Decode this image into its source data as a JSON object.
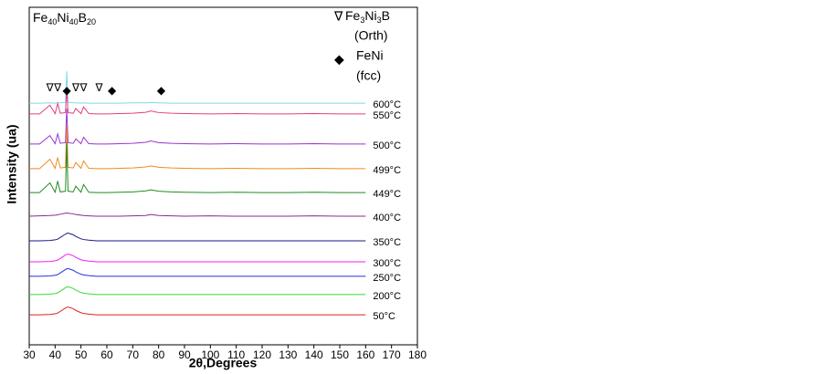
{
  "chart_data": {
    "type": "line",
    "title": "Fe40Ni40B20",
    "xlabel": "2θ,Degrees",
    "ylabel": "Intensity (ua)",
    "xlim": [
      30,
      180
    ],
    "xticks": [
      30,
      40,
      50,
      60,
      70,
      80,
      90,
      100,
      110,
      120,
      130,
      140,
      150,
      160,
      170,
      180
    ],
    "ylim": [
      0,
      100
    ],
    "phases": [
      {
        "symbol": "∇",
        "name": "Fe3Ni3B",
        "structure": "(Orth)",
        "positions": [
          38,
          41,
          48,
          51,
          57
        ]
      },
      {
        "symbol": "◆",
        "name": "FeNi",
        "structure": "(fcc)",
        "positions": [
          44.5,
          62,
          81
        ]
      }
    ],
    "x": [
      30,
      34,
      38,
      40,
      41,
      42,
      44,
      44.5,
      45,
      47,
      48,
      50,
      51,
      53,
      56,
      60,
      65,
      70,
      75,
      77,
      80,
      85,
      90,
      100,
      110,
      120,
      130,
      140,
      150,
      160
    ],
    "series": [
      {
        "name": "600°C",
        "color": "#7fd8f0",
        "values": [
          71.6,
          71.6,
          71.7,
          71.6,
          71.7,
          71.7,
          71.8,
          81,
          71.8,
          71.7,
          71.7,
          71.6,
          71.7,
          71.6,
          71.6,
          71.6,
          71.6,
          71.7,
          71.7,
          71.8,
          71.7,
          71.6,
          71.6,
          71.6,
          71.6,
          71.6,
          71.6,
          71.6,
          71.6,
          71.6
        ]
      },
      {
        "name": "550°C",
        "color": "#e0407a",
        "values": [
          68.4,
          68.4,
          71.0,
          68.5,
          71.5,
          68.6,
          68.8,
          76,
          68.8,
          68.6,
          70.0,
          68.5,
          70.5,
          68.5,
          68.4,
          68.4,
          68.5,
          68.6,
          68.9,
          69.3,
          68.8,
          68.6,
          68.5,
          68.4,
          68.5,
          68.4,
          68.4,
          68.5,
          68.4,
          68.4
        ]
      },
      {
        "name": "500°C",
        "color": "#9933cc",
        "values": [
          59.5,
          59.5,
          62.0,
          59.6,
          62.5,
          59.7,
          59.9,
          70,
          59.9,
          59.7,
          61.0,
          59.6,
          61.5,
          59.6,
          59.5,
          59.5,
          59.6,
          59.7,
          60.0,
          60.4,
          59.9,
          59.7,
          59.6,
          59.5,
          59.6,
          59.5,
          59.5,
          59.6,
          59.5,
          59.5
        ]
      },
      {
        "name": "499°C",
        "color": "#f08a20",
        "values": [
          52.2,
          52.2,
          55.0,
          52.3,
          55.5,
          52.4,
          52.6,
          65,
          52.6,
          52.4,
          54.0,
          52.3,
          54.5,
          52.3,
          52.2,
          52.2,
          52.3,
          52.4,
          52.7,
          53.0,
          52.6,
          52.4,
          52.3,
          52.2,
          52.3,
          52.2,
          52.2,
          52.3,
          52.2,
          52.2
        ]
      },
      {
        "name": "449°C",
        "color": "#228b22",
        "values": [
          45.1,
          45.1,
          48.0,
          45.2,
          48.5,
          45.3,
          45.5,
          60,
          45.5,
          45.3,
          47.0,
          45.2,
          47.5,
          45.2,
          45.1,
          45.1,
          45.2,
          45.3,
          45.6,
          45.9,
          45.5,
          45.3,
          45.2,
          45.1,
          45.2,
          45.1,
          45.1,
          45.2,
          45.1,
          45.1
        ]
      },
      {
        "name": "400°C",
        "color": "#8b2a8b",
        "values": [
          38.1,
          38.2,
          38.3,
          38.4,
          38.5,
          38.7,
          39.0,
          39.1,
          39.0,
          38.8,
          38.6,
          38.4,
          38.3,
          38.2,
          38.1,
          38.1,
          38.1,
          38.2,
          38.3,
          38.6,
          38.3,
          38.2,
          38.1,
          38.2,
          38.1,
          38.1,
          38.1,
          38.2,
          38.1,
          38.1
        ]
      },
      {
        "name": "350°C",
        "color": "#1a1a8c",
        "values": [
          30.8,
          30.8,
          30.9,
          31.1,
          31.3,
          31.8,
          32.8,
          33.0,
          33.1,
          32.6,
          32.1,
          31.4,
          31.2,
          31.0,
          30.8,
          30.8,
          30.8,
          30.8,
          30.8,
          30.8,
          30.8,
          30.8,
          30.8,
          30.8,
          30.8,
          30.8,
          30.8,
          30.8,
          30.8,
          30.8
        ]
      },
      {
        "name": "300°C",
        "color": "#ee22ee",
        "values": [
          24.6,
          24.6,
          24.7,
          24.9,
          25.1,
          25.6,
          26.6,
          26.8,
          26.9,
          26.4,
          25.9,
          25.2,
          25.0,
          24.8,
          24.6,
          24.6,
          24.6,
          24.6,
          24.6,
          24.6,
          24.6,
          24.6,
          24.6,
          24.6,
          24.6,
          24.6,
          24.6,
          24.6,
          24.6,
          24.6
        ]
      },
      {
        "name": "250°C",
        "color": "#2233dd",
        "values": [
          20.3,
          20.3,
          20.4,
          20.6,
          20.8,
          21.3,
          22.3,
          22.5,
          22.6,
          22.1,
          21.6,
          20.9,
          20.7,
          20.5,
          20.3,
          20.3,
          20.3,
          20.3,
          20.3,
          20.3,
          20.3,
          20.3,
          20.3,
          20.3,
          20.3,
          20.3,
          20.3,
          20.3,
          20.3,
          20.3
        ]
      },
      {
        "name": "200°C",
        "color": "#33dd33",
        "values": [
          14.9,
          14.9,
          15.0,
          15.2,
          15.4,
          15.9,
          16.9,
          17.1,
          17.2,
          16.7,
          16.2,
          15.5,
          15.3,
          15.1,
          14.9,
          14.9,
          14.9,
          14.9,
          14.9,
          14.9,
          14.9,
          14.9,
          14.9,
          14.9,
          14.9,
          14.9,
          14.9,
          14.9,
          14.9,
          14.9
        ]
      },
      {
        "name": "50°C",
        "color": "#dd2222",
        "values": [
          8.9,
          8.9,
          9.0,
          9.2,
          9.4,
          9.9,
          10.9,
          11.1,
          11.2,
          10.7,
          10.2,
          9.5,
          9.3,
          9.1,
          8.9,
          8.9,
          8.9,
          8.9,
          8.9,
          8.9,
          8.9,
          8.9,
          8.9,
          8.9,
          8.9,
          8.9,
          8.9,
          8.9,
          8.9,
          8.9
        ]
      }
    ]
  }
}
